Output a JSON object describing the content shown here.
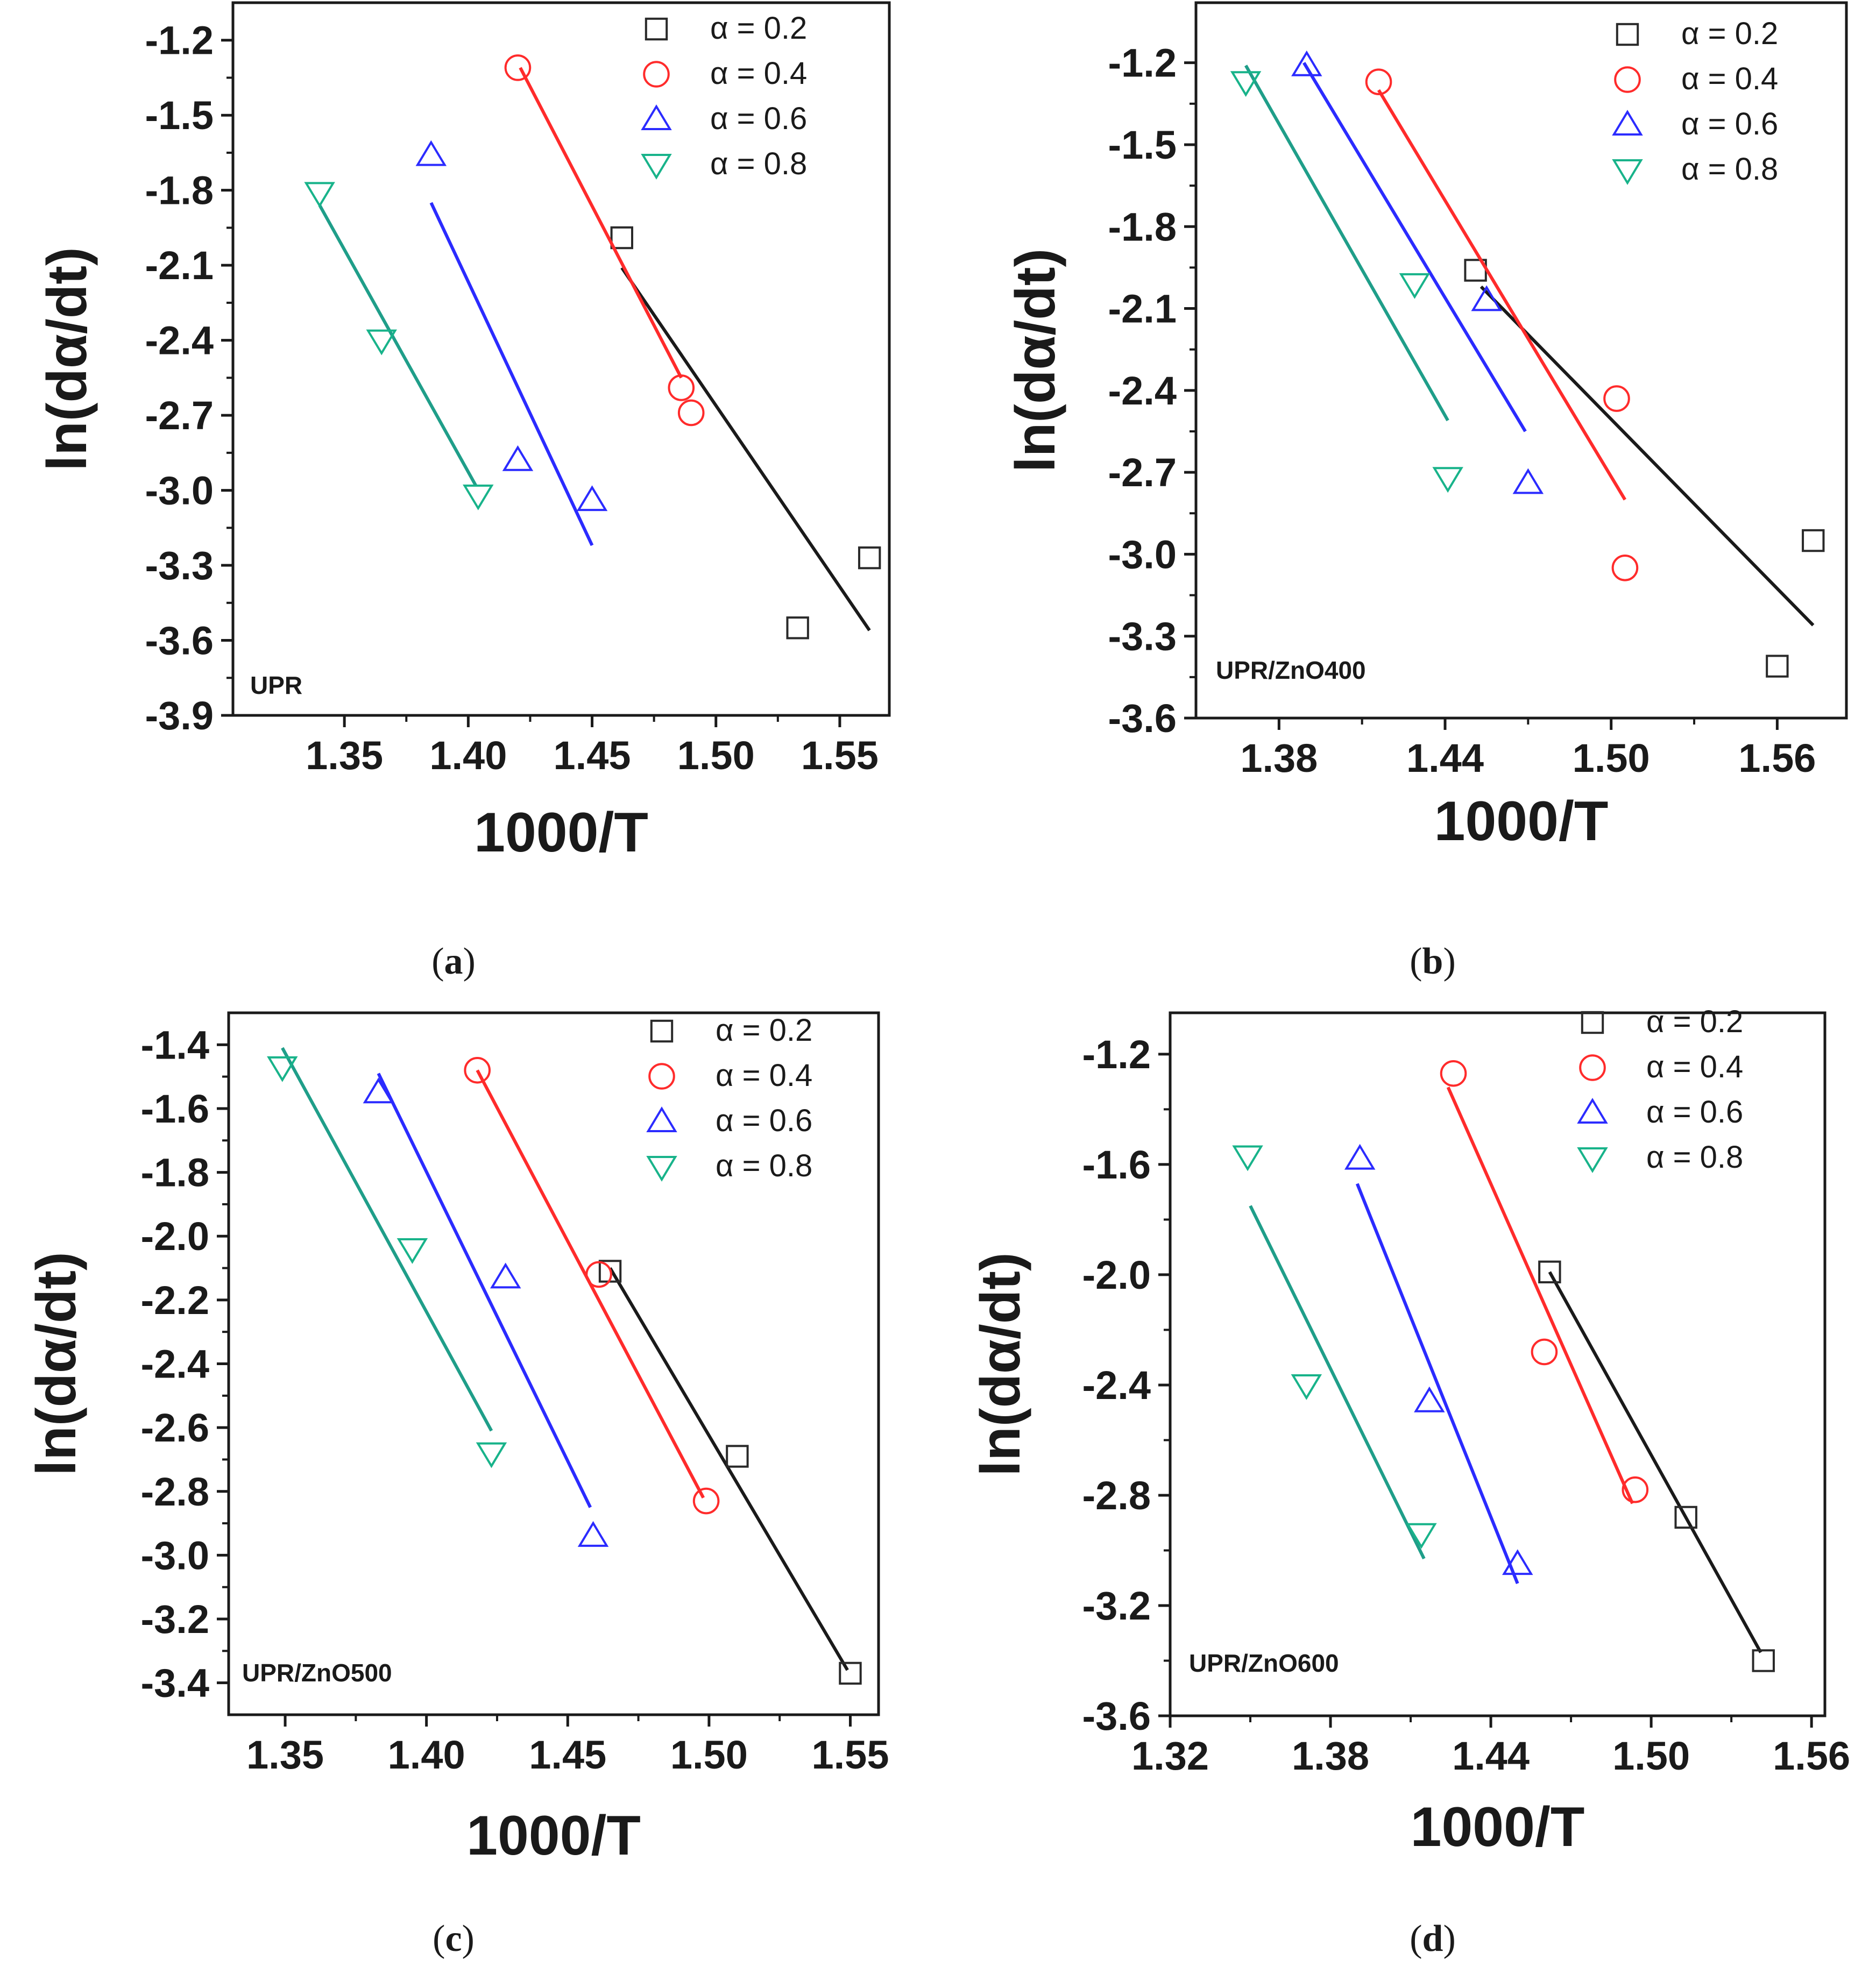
{
  "series_colors": [
    "#1a1a1a",
    "#ff2b2b",
    "#2b2bff",
    "#1f9e89"
  ],
  "marker_colors": [
    "#2a2a2a",
    "#ff2b2b",
    "#2b2bff",
    "#18b38a"
  ],
  "markers": [
    "square-icon",
    "circle-icon",
    "triangle-up-icon",
    "triangle-down-icon"
  ],
  "chart_data": [
    {
      "type": "scatter",
      "sample": "UPR",
      "caption": {
        "open": "(",
        "letter": "a",
        "close": ")"
      },
      "xlabel": "1000/T",
      "ylabel": "ln(dα/dt)",
      "xlim": [
        1.305,
        1.57
      ],
      "ylim": [
        -3.9,
        -1.05
      ],
      "xticks": [
        "1.35",
        "1.40",
        "1.45",
        "1.50",
        "1.55"
      ],
      "yticks": [
        "-3.9",
        "-3.6",
        "-3.3",
        "-3.0",
        "-2.7",
        "-2.4",
        "-2.1",
        "-1.8",
        "-1.5",
        "-1.2"
      ],
      "series": [
        {
          "name": "α = 0.2",
          "x": [
            1.462,
            1.533,
            1.562
          ],
          "y": [
            -1.99,
            -3.55,
            -3.27
          ],
          "fit": [
            [
              1.462,
              -2.11
            ],
            [
              1.562,
              -3.56
            ]
          ]
        },
        {
          "name": "α = 0.4",
          "x": [
            1.42,
            1.486,
            1.49
          ],
          "y": [
            -1.31,
            -2.59,
            -2.69
          ],
          "fit": [
            [
              1.421,
              -1.31
            ],
            [
              1.486,
              -2.55
            ]
          ]
        },
        {
          "name": "α = 0.6",
          "x": [
            1.385,
            1.42,
            1.45
          ],
          "y": [
            -1.66,
            -2.88,
            -3.04
          ],
          "fit": [
            [
              1.385,
              -1.85
            ],
            [
              1.45,
              -3.22
            ]
          ]
        },
        {
          "name": "α = 0.8",
          "x": [
            1.34,
            1.365,
            1.404
          ],
          "y": [
            -1.81,
            -2.4,
            -3.02
          ],
          "fit": [
            [
              1.34,
              -1.86
            ],
            [
              1.403,
              -2.98
            ]
          ]
        }
      ]
    },
    {
      "type": "scatter",
      "sample": "UPR/ZnO400",
      "caption": {
        "open": "(",
        "letter": "b",
        "close": ")"
      },
      "xlabel": "1000/T",
      "ylabel": "ln(dα/dt)",
      "xlim": [
        1.35,
        1.585
      ],
      "ylim": [
        -3.6,
        -0.98
      ],
      "xticks": [
        "1.38",
        "1.44",
        "1.50",
        "1.56"
      ],
      "yticks": [
        "-3.6",
        "-3.3",
        "-3.0",
        "-2.7",
        "-2.4",
        "-2.1",
        "-1.8",
        "-1.5",
        "-1.2"
      ],
      "series": [
        {
          "name": "α = 0.2",
          "x": [
            1.451,
            1.56,
            1.573
          ],
          "y": [
            -1.96,
            -3.41,
            -2.95
          ],
          "fit": [
            [
              1.453,
              -2.02
            ],
            [
              1.573,
              -3.26
            ]
          ]
        },
        {
          "name": "α = 0.4",
          "x": [
            1.416,
            1.502,
            1.505
          ],
          "y": [
            -1.27,
            -2.43,
            -3.05
          ],
          "fit": [
            [
              1.416,
              -1.3
            ],
            [
              1.505,
              -2.8
            ]
          ]
        },
        {
          "name": "α = 0.6",
          "x": [
            1.39,
            1.455,
            1.47
          ],
          "y": [
            -1.21,
            -2.07,
            -2.74
          ],
          "fit": [
            [
              1.389,
              -1.2
            ],
            [
              1.469,
              -2.55
            ]
          ]
        },
        {
          "name": "α = 0.8",
          "x": [
            1.368,
            1.429,
            1.441
          ],
          "y": [
            -1.27,
            -2.01,
            -2.72
          ],
          "fit": [
            [
              1.368,
              -1.21
            ],
            [
              1.441,
              -2.51
            ]
          ]
        }
      ]
    },
    {
      "type": "scatter",
      "sample": "UPR/ZnO500",
      "caption": {
        "open": "(",
        "letter": "c",
        "close": ")"
      },
      "xlabel": "1000/T",
      "ylabel": "ln(dα/dt)",
      "xlim": [
        1.33,
        1.56
      ],
      "ylim": [
        -3.5,
        -1.3
      ],
      "xticks": [
        "1.35",
        "1.40",
        "1.45",
        "1.50",
        "1.55"
      ],
      "yticks": [
        "-3.4",
        "-3.2",
        "-3.0",
        "-2.8",
        "-2.6",
        "-2.4",
        "-2.2",
        "-2.0",
        "-1.8",
        "-1.6",
        "-1.4"
      ],
      "series": [
        {
          "name": "α = 0.2",
          "x": [
            1.465,
            1.51,
            1.55
          ],
          "y": [
            -2.11,
            -2.69,
            -3.37
          ],
          "fit": [
            [
              1.465,
              -2.1
            ],
            [
              1.549,
              -3.36
            ]
          ]
        },
        {
          "name": "α = 0.4",
          "x": [
            1.418,
            1.461,
            1.499
          ],
          "y": [
            -1.48,
            -2.12,
            -2.83
          ],
          "fit": [
            [
              1.418,
              -1.48
            ],
            [
              1.498,
              -2.82
            ]
          ]
        },
        {
          "name": "α = 0.6",
          "x": [
            1.383,
            1.428,
            1.459
          ],
          "y": [
            -1.55,
            -2.13,
            -2.94
          ],
          "fit": [
            [
              1.383,
              -1.49
            ],
            [
              1.458,
              -2.85
            ]
          ]
        },
        {
          "name": "α = 0.8",
          "x": [
            1.349,
            1.395,
            1.423
          ],
          "y": [
            -1.47,
            -2.04,
            -2.68
          ],
          "fit": [
            [
              1.349,
              -1.41
            ],
            [
              1.423,
              -2.61
            ]
          ]
        }
      ]
    },
    {
      "type": "scatter",
      "sample": "UPR/ZnO600",
      "caption": {
        "open": "(",
        "letter": "d",
        "close": ")"
      },
      "xlabel": "1000/T",
      "ylabel": "ln(dα/dt)",
      "xlim": [
        1.32,
        1.565
      ],
      "ylim": [
        -3.6,
        -1.05
      ],
      "xticks": [
        "1.32",
        "1.38",
        "1.44",
        "1.50",
        "1.56"
      ],
      "yticks": [
        "-3.6",
        "-3.2",
        "-2.8",
        "-2.4",
        "-2.0",
        "-1.6",
        "-1.2"
      ],
      "series": [
        {
          "name": "α = 0.2",
          "x": [
            1.462,
            1.513,
            1.542
          ],
          "y": [
            -1.99,
            -2.88,
            -3.4
          ],
          "fit": [
            [
              1.462,
              -1.99
            ],
            [
              1.541,
              -3.37
            ]
          ]
        },
        {
          "name": "α = 0.4",
          "x": [
            1.426,
            1.46,
            1.494
          ],
          "y": [
            -1.27,
            -2.28,
            -2.78
          ],
          "fit": [
            [
              1.424,
              -1.32
            ],
            [
              1.493,
              -2.83
            ]
          ]
        },
        {
          "name": "α = 0.6",
          "x": [
            1.391,
            1.417,
            1.45
          ],
          "y": [
            -1.58,
            -2.46,
            -3.05
          ],
          "fit": [
            [
              1.39,
              -1.67
            ],
            [
              1.45,
              -3.12
            ]
          ]
        },
        {
          "name": "α = 0.8",
          "x": [
            1.349,
            1.371,
            1.414
          ],
          "y": [
            -1.57,
            -2.4,
            -2.94
          ],
          "fit": [
            [
              1.35,
              -1.75
            ],
            [
              1.415,
              -3.03
            ]
          ]
        }
      ]
    }
  ]
}
